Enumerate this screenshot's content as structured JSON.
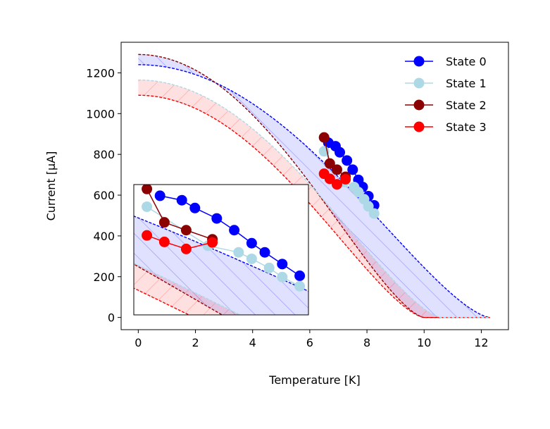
{
  "chart_data": {
    "type": "line",
    "xlabel": "Temperature [K]",
    "ylabel": "Current [μA]",
    "xlim": [
      -0.6,
      12.95
    ],
    "ylim": [
      -60,
      1350
    ],
    "xticks": [
      0,
      2,
      4,
      6,
      8,
      10,
      12
    ],
    "yticks": [
      0,
      200,
      400,
      600,
      800,
      1000,
      1200
    ],
    "grid": false,
    "legend": "top-right",
    "series": [
      {
        "name": "State 0",
        "color": "#0000ff",
        "x": [
          6.65,
          6.9,
          7.05,
          7.3,
          7.5,
          7.7,
          7.85,
          8.05,
          8.25
        ],
        "y": [
          857,
          840,
          810,
          770,
          725,
          675,
          640,
          595,
          550
        ]
      },
      {
        "name": "State 1",
        "color": "#add8e6",
        "x": [
          6.5,
          7.2,
          7.55,
          7.7,
          7.9,
          8.05,
          8.25
        ],
        "y": [
          815,
          665,
          640,
          615,
          580,
          545,
          510
        ]
      },
      {
        "name": "State 2",
        "color": "#8b0000",
        "x": [
          6.5,
          6.7,
          6.95,
          7.25
        ],
        "y": [
          883,
          755,
          725,
          690
        ]
      },
      {
        "name": "State 3",
        "color": "#ff0000",
        "x": [
          6.5,
          6.7,
          6.95,
          7.25
        ],
        "y": [
          705,
          680,
          653,
          678
        ]
      }
    ],
    "bands": [
      {
        "color": "#0000ff",
        "lower_y0": 1240,
        "lower_tc": 12.3,
        "upper_y0": 1290,
        "upper_tc": 10.0
      },
      {
        "color": "#ff0000",
        "lower_y0": 1090,
        "lower_tc": 10.0,
        "upper_y0": 1165,
        "upper_tc": 10.6
      }
    ],
    "inset": {
      "xlim": [
        6.35,
        8.35
      ],
      "ylim": [
        400,
        900
      ]
    }
  }
}
